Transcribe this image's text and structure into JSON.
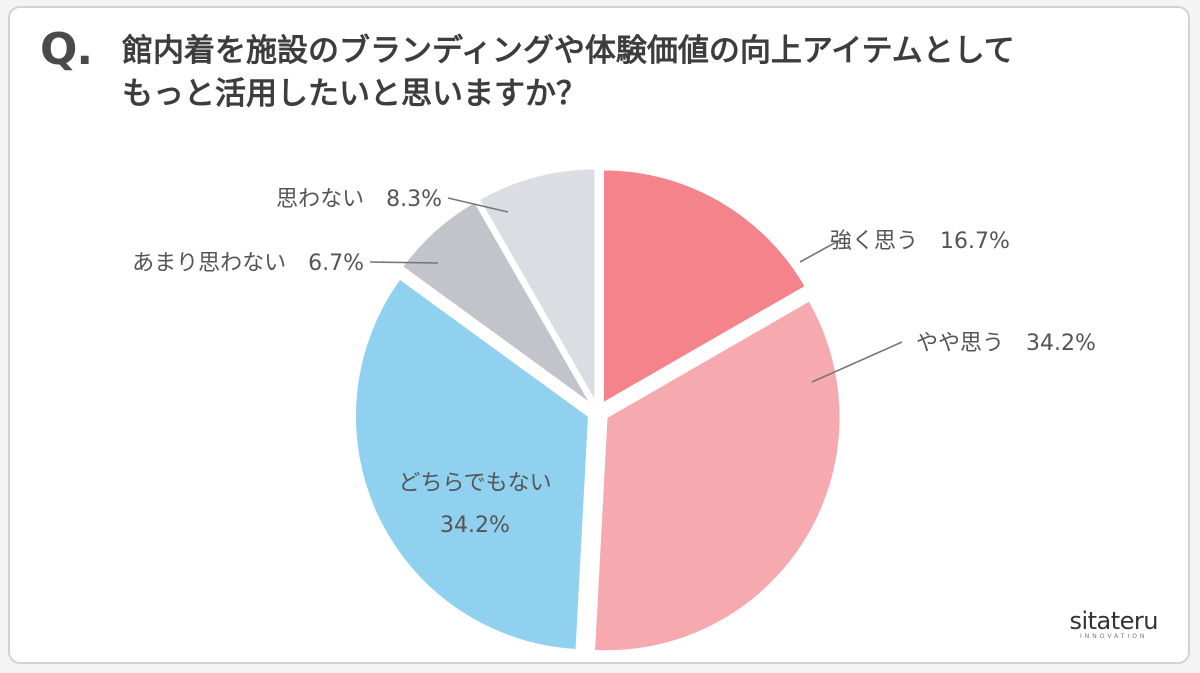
{
  "question": {
    "mark": "Q.",
    "line1": "館内着を施設のブランディングや体験価値の向上アイテムとして",
    "line2": "もっと活用したいと思いますか？"
  },
  "chart_data": {
    "type": "pie",
    "slices": [
      {
        "label": "強く思う",
        "value": 16.7,
        "value_label": "16.7%",
        "color": "#f4838c"
      },
      {
        "label": "やや思う",
        "value": 34.2,
        "value_label": "34.2%",
        "color": "#f6a9ae"
      },
      {
        "label": "どちらでもない",
        "value": 34.2,
        "value_label": "34.2%",
        "color": "#8fd1ef"
      },
      {
        "label": "あまり思わない",
        "value": 6.7,
        "value_label": "6.7%",
        "color": "#c2c3cb"
      },
      {
        "label": "思わない",
        "value": 8.3,
        "value_label": "8.3%",
        "color": "#dcdde2"
      }
    ]
  },
  "logo": {
    "name": "sitateru",
    "sub": "INNOVATION"
  }
}
